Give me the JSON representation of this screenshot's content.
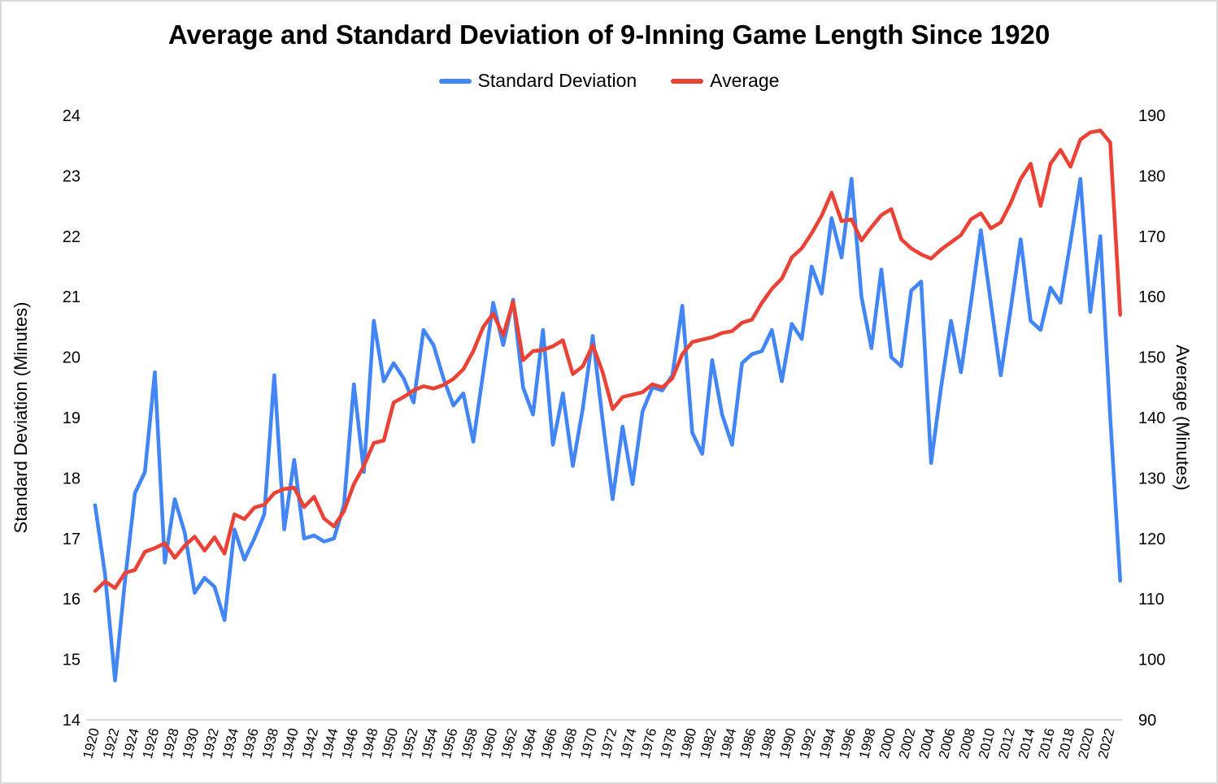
{
  "title": "Average and Standard Deviation of 9-Inning Game Length Since 1920",
  "chart_data": {
    "type": "line",
    "x_first_year": 1920,
    "x_last_year": 2023,
    "x_tick_start": 1920,
    "x_tick_end": 2022,
    "x_tick_step": 2,
    "grid": false,
    "legend_position": "top",
    "left_axis": {
      "label": "Standard Deviation (Minutes)",
      "min": 14,
      "max": 24,
      "tick_step": 1,
      "ticks": [
        14,
        15,
        16,
        17,
        18,
        19,
        20,
        21,
        22,
        23,
        24
      ]
    },
    "right_axis": {
      "label": "Average (Minutes)",
      "min": 90,
      "max": 190,
      "tick_step": 10,
      "ticks": [
        90,
        100,
        110,
        120,
        130,
        140,
        150,
        160,
        170,
        180,
        190
      ]
    },
    "series": [
      {
        "name": "Standard Deviation",
        "axis": "left",
        "color": "#4285f4",
        "values": [
          17.55,
          16.4,
          14.65,
          16.3,
          17.75,
          18.1,
          19.75,
          16.6,
          17.65,
          17.1,
          16.1,
          16.35,
          16.2,
          15.65,
          17.15,
          16.65,
          17.0,
          17.4,
          19.7,
          17.15,
          18.3,
          17.0,
          17.05,
          16.95,
          17.0,
          17.55,
          19.55,
          18.1,
          20.6,
          19.6,
          19.9,
          19.65,
          19.25,
          20.45,
          20.2,
          19.65,
          19.2,
          19.4,
          18.6,
          19.75,
          20.9,
          20.2,
          20.95,
          19.5,
          19.05,
          20.45,
          18.55,
          19.4,
          18.2,
          19.15,
          20.35,
          18.95,
          17.65,
          18.85,
          17.9,
          19.1,
          19.5,
          19.45,
          19.7,
          20.85,
          18.75,
          18.4,
          19.95,
          19.05,
          18.55,
          19.9,
          20.05,
          20.1,
          20.45,
          19.6,
          20.55,
          20.3,
          21.5,
          21.05,
          22.3,
          21.65,
          22.95,
          21.0,
          20.15,
          21.45,
          20.0,
          19.85,
          21.1,
          21.25,
          18.25,
          19.5,
          20.6,
          19.75,
          20.9,
          22.1,
          20.9,
          19.7,
          20.8,
          21.95,
          20.6,
          20.45,
          21.15,
          20.9,
          21.9,
          22.95,
          20.75,
          22.0,
          19.0,
          16.3
        ]
      },
      {
        "name": "Average",
        "axis": "right",
        "color": "#ea4335",
        "values": [
          111.3,
          112.9,
          111.8,
          114.3,
          114.8,
          117.8,
          118.4,
          119.2,
          116.8,
          118.8,
          120.3,
          118.0,
          120.2,
          117.5,
          124.0,
          123.2,
          125.1,
          125.6,
          127.5,
          128.2,
          128.4,
          125.2,
          126.9,
          123.3,
          122.0,
          124.5,
          129.0,
          132.0,
          135.8,
          136.2,
          142.5,
          143.4,
          144.5,
          145.2,
          144.8,
          145.4,
          146.4,
          148.0,
          151.0,
          155.0,
          157.2,
          153.6,
          159.2,
          149.5,
          151.0,
          151.2,
          151.8,
          152.8,
          147.2,
          148.5,
          152.0,
          147.5,
          141.4,
          143.4,
          143.8,
          144.2,
          145.5,
          145.0,
          146.5,
          150.5,
          152.5,
          152.9,
          153.3,
          154.0,
          154.3,
          155.7,
          156.2,
          159.0,
          161.3,
          163.0,
          166.5,
          168.0,
          170.5,
          173.4,
          177.2,
          172.5,
          172.8,
          169.3,
          171.5,
          173.5,
          174.5,
          169.5,
          168.0,
          167.0,
          166.3,
          167.8,
          169.0,
          170.2,
          172.8,
          173.8,
          171.3,
          172.3,
          175.5,
          179.5,
          182.0,
          175.0,
          182.0,
          184.3,
          181.5,
          186.0,
          187.2,
          187.5,
          185.5,
          157.0
        ]
      }
    ]
  }
}
